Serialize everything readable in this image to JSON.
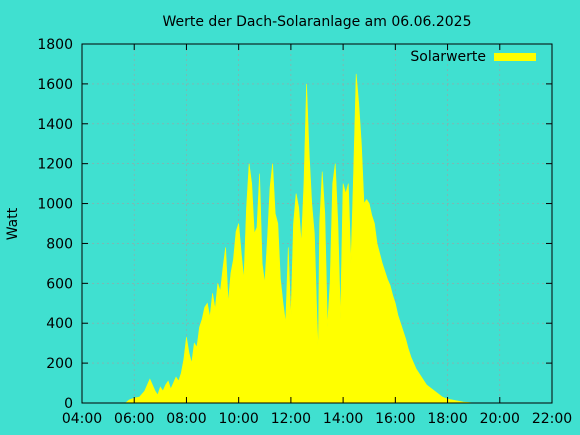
{
  "chart_data": {
    "type": "area",
    "title": "Werte der Dach-Solaranlage am 06.06.2025",
    "xlabel": "",
    "ylabel": "Watt",
    "x_unit": "hour of day",
    "xlim": [
      4,
      22
    ],
    "ylim": [
      0,
      1800
    ],
    "x_tick_values": [
      4,
      6,
      8,
      10,
      12,
      14,
      16,
      18,
      20,
      22
    ],
    "x_tick_labels": [
      "04:00",
      "06:00",
      "08:00",
      "10:00",
      "12:00",
      "14:00",
      "16:00",
      "18:00",
      "20:00",
      "22:00"
    ],
    "y_tick_values": [
      0,
      200,
      400,
      600,
      800,
      1000,
      1200,
      1400,
      1600,
      1800
    ],
    "y_tick_labels": [
      "0",
      "200",
      "400",
      "600",
      "800",
      "1000",
      "1200",
      "1400",
      "1600",
      "1800"
    ],
    "grid": true,
    "legend_position": "top-right",
    "series": [
      {
        "name": "Solarwerte",
        "color": "#ffff00",
        "x": [
          5.67,
          5.8,
          6.0,
          6.2,
          6.4,
          6.6,
          6.8,
          6.9,
          7.0,
          7.1,
          7.2,
          7.3,
          7.4,
          7.5,
          7.6,
          7.7,
          7.8,
          7.9,
          8.0,
          8.1,
          8.2,
          8.3,
          8.4,
          8.5,
          8.6,
          8.7,
          8.8,
          8.9,
          9.0,
          9.1,
          9.2,
          9.3,
          9.4,
          9.5,
          9.6,
          9.7,
          9.8,
          9.9,
          10.0,
          10.1,
          10.2,
          10.3,
          10.4,
          10.5,
          10.6,
          10.7,
          10.8,
          10.9,
          11.0,
          11.1,
          11.2,
          11.3,
          11.4,
          11.5,
          11.6,
          11.7,
          11.8,
          11.9,
          12.0,
          12.1,
          12.2,
          12.3,
          12.4,
          12.5,
          12.6,
          12.7,
          12.8,
          12.9,
          13.0,
          13.05,
          13.1,
          13.2,
          13.3,
          13.4,
          13.5,
          13.6,
          13.7,
          13.8,
          13.9,
          14.0,
          14.1,
          14.2,
          14.3,
          14.4,
          14.5,
          14.6,
          14.7,
          14.8,
          14.9,
          15.0,
          15.1,
          15.2,
          15.3,
          15.4,
          15.5,
          15.6,
          15.7,
          15.8,
          15.9,
          16.0,
          16.1,
          16.2,
          16.3,
          16.4,
          16.5,
          16.6,
          16.7,
          16.8,
          16.9,
          17.0,
          17.2,
          17.4,
          17.6,
          17.8,
          18.0,
          18.2,
          18.4,
          18.6,
          18.8,
          19.0,
          19.2,
          19.4,
          19.6,
          19.8,
          20.0,
          20.2,
          20.4,
          20.6,
          20.8,
          21.0,
          21.1
        ],
        "y": [
          0,
          15,
          25,
          30,
          60,
          120,
          60,
          40,
          80,
          60,
          90,
          110,
          70,
          100,
          130,
          110,
          150,
          220,
          330,
          250,
          200,
          300,
          280,
          380,
          420,
          480,
          500,
          430,
          550,
          470,
          600,
          560,
          680,
          780,
          500,
          650,
          720,
          860,
          900,
          750,
          620,
          980,
          1200,
          1100,
          850,
          880,
          1150,
          700,
          600,
          820,
          1080,
          1200,
          950,
          900,
          620,
          500,
          400,
          780,
          420,
          900,
          1050,
          980,
          800,
          1100,
          1600,
          1250,
          1000,
          850,
          420,
          250,
          900,
          1160,
          950,
          380,
          600,
          1100,
          1200,
          900,
          420,
          1100,
          1050,
          1100,
          700,
          1150,
          1650,
          1500,
          1300,
          1000,
          1020,
          1000,
          940,
          900,
          800,
          750,
          700,
          660,
          620,
          590,
          540,
          500,
          440,
          400,
          360,
          320,
          270,
          230,
          200,
          170,
          150,
          130,
          90,
          70,
          50,
          30,
          20,
          15,
          10,
          5,
          3,
          0,
          0,
          0,
          0,
          0,
          0,
          0,
          0,
          0,
          0,
          0,
          0
        ]
      }
    ]
  }
}
